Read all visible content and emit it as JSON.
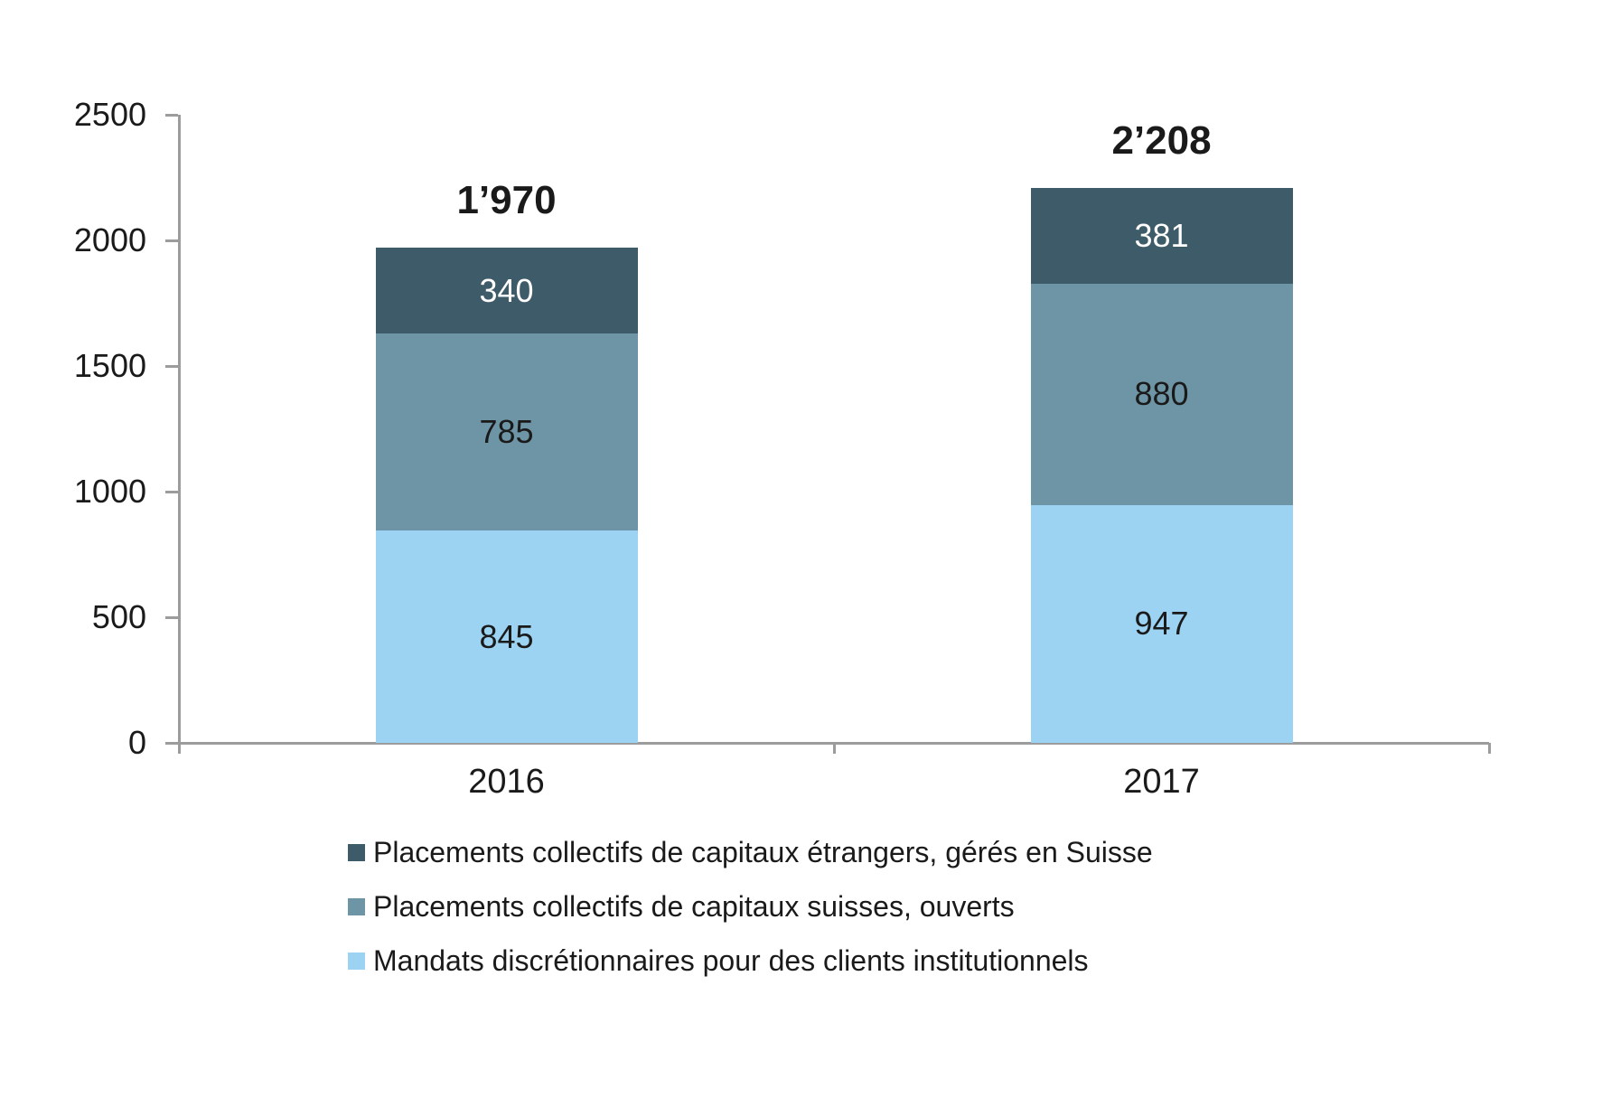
{
  "chart_data": {
    "type": "bar",
    "stacked": true,
    "title": "",
    "categories": [
      "2016",
      "2017"
    ],
    "series": [
      {
        "name": "Mandats discrétionnaires pour des clients institutionnels",
        "color": "#9CD3F2",
        "label_color": "#1A1A1A",
        "values": [
          845,
          947
        ]
      },
      {
        "name": "Placements collectifs de capitaux suisses, ouverts",
        "color": "#6E95A5",
        "label_color": "#1A1A1A",
        "values": [
          785,
          880
        ]
      },
      {
        "name": "Placements collectifs de capitaux étrangers, gérés en Suisse",
        "color": "#3E5B69",
        "label_color": "#FFFFFF",
        "values": [
          340,
          381
        ]
      }
    ],
    "totals": [
      "1’970",
      "2’208"
    ],
    "y_axis": {
      "min": 0,
      "max": 2500,
      "step": 500,
      "tick_labels": [
        "0",
        "500",
        "1000",
        "1500",
        "2000",
        "2500"
      ]
    },
    "gridlines": false,
    "legend_position": "bottom-left",
    "legend": [
      {
        "label": "Placements collectifs de capitaux étrangers, gérés en Suisse",
        "color": "#3E5B69"
      },
      {
        "label": "Placements collectifs de capitaux suisses, ouverts",
        "color": "#6E95A5"
      },
      {
        "label": "Mandats discrétionnaires pour des clients institutionnels",
        "color": "#9CD3F2"
      }
    ],
    "axis_color": "#9C9C9C",
    "text_color": "#1A1A1A"
  }
}
